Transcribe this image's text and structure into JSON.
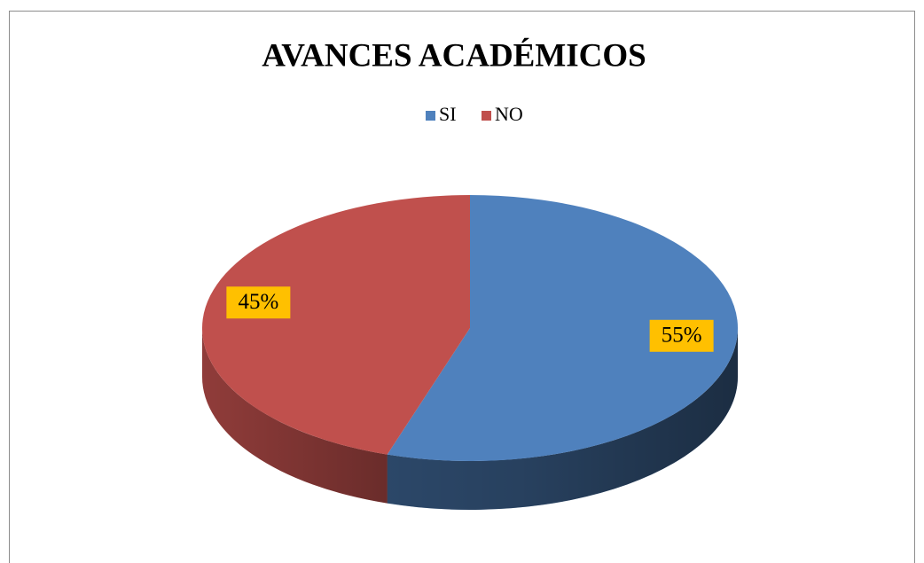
{
  "chart_data": {
    "type": "pie",
    "title": "AVANCES ACADÉMICOS",
    "categories": [
      "SI",
      "NO"
    ],
    "values": [
      55,
      45
    ],
    "value_labels": [
      "55%",
      "45%"
    ],
    "colors": [
      "#4f81bd",
      "#c0504d"
    ],
    "legend": "top"
  }
}
